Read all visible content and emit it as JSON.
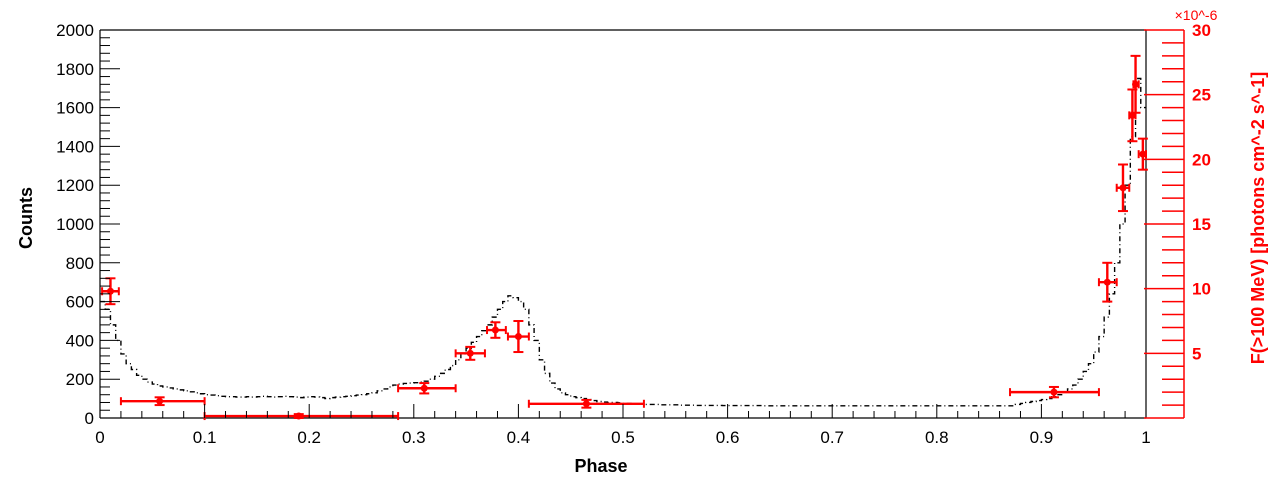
{
  "chart_data": {
    "type": "line",
    "xlabel": "Phase",
    "ylabel": "Counts",
    "ylabel_right": "F(>100 MeV) [photons cm^-2 s^-1]",
    "right_axis_multiplier": "×10^-6",
    "xlim": [
      0,
      1
    ],
    "ylim": [
      0,
      2000
    ],
    "ylim_right": [
      0,
      30
    ],
    "x_ticks": [
      "0",
      "0.1",
      "0.2",
      "0.3",
      "0.4",
      "0.5",
      "0.6",
      "0.7",
      "0.8",
      "0.9",
      "1"
    ],
    "y_ticks": [
      "0",
      "200",
      "400",
      "600",
      "800",
      "1000",
      "1200",
      "1400",
      "1600",
      "1800",
      "2000"
    ],
    "y_ticks_right": [
      "5",
      "10",
      "15",
      "20",
      "25",
      "30"
    ],
    "colors": {
      "histogram": "#000000",
      "flux": "#ff0000"
    },
    "grid": false,
    "series": [
      {
        "kind": "histogram",
        "axis": "left",
        "bin_width": 0.005,
        "bin_start": 0,
        "values": [
          600,
          560,
          480,
          400,
          330,
          280,
          250,
          220,
          200,
          185,
          175,
          165,
          160,
          155,
          150,
          145,
          140,
          135,
          130,
          125,
          120,
          118,
          115,
          112,
          110,
          110,
          108,
          108,
          110,
          108,
          110,
          112,
          110,
          108,
          110,
          112,
          110,
          108,
          105,
          108,
          110,
          108,
          105,
          100,
          105,
          108,
          110,
          112,
          115,
          118,
          120,
          125,
          130,
          140,
          150,
          160,
          170,
          175,
          178,
          180,
          182,
          185,
          190,
          200,
          215,
          230,
          250,
          270,
          300,
          330,
          360,
          390,
          420,
          450,
          480,
          520,
          560,
          600,
          630,
          620,
          600,
          560,
          480,
          400,
          300,
          230,
          180,
          150,
          130,
          120,
          110,
          105,
          100,
          95,
          90,
          85,
          82,
          80,
          80,
          78,
          75,
          75,
          72,
          72,
          70,
          70,
          70,
          68,
          68,
          68,
          68,
          66,
          66,
          66,
          65,
          65,
          65,
          65,
          65,
          64,
          64,
          64,
          64,
          64,
          64,
          64,
          64,
          63,
          63,
          63,
          63,
          63,
          63,
          63,
          63,
          63,
          63,
          63,
          63,
          63,
          63,
          63,
          63,
          63,
          63,
          63,
          63,
          63,
          63,
          63,
          63,
          63,
          63,
          63,
          63,
          63,
          63,
          63,
          63,
          63,
          63,
          63,
          63,
          63,
          63,
          63,
          63,
          63,
          63,
          63,
          63,
          63,
          63,
          63,
          63,
          70,
          75,
          80,
          85,
          90,
          95,
          100,
          110,
          120,
          135,
          150,
          170,
          200,
          240,
          280,
          340,
          420,
          520,
          640,
          800,
          1000,
          1200,
          1450,
          1750,
          1600
        ]
      },
      {
        "kind": "errorbars",
        "axis": "right",
        "points": [
          {
            "x": 0.01,
            "x_lo": 0.002,
            "x_hi": 0.018,
            "y": 9.8,
            "y_err": 1.0
          },
          {
            "x": 0.057,
            "x_lo": 0.02,
            "x_hi": 0.1,
            "y": 1.3,
            "y_err": 0.3
          },
          {
            "x": 0.19,
            "x_lo": 0.1,
            "x_hi": 0.285,
            "y": 0.15,
            "y_err": 0.15
          },
          {
            "x": 0.31,
            "x_lo": 0.285,
            "x_hi": 0.34,
            "y": 2.3,
            "y_err": 0.4
          },
          {
            "x": 0.354,
            "x_lo": 0.34,
            "x_hi": 0.368,
            "y": 5.0,
            "y_err": 0.5
          },
          {
            "x": 0.378,
            "x_lo": 0.37,
            "x_hi": 0.388,
            "y": 6.8,
            "y_err": 0.6
          },
          {
            "x": 0.4,
            "x_lo": 0.39,
            "x_hi": 0.41,
            "y": 6.3,
            "y_err": 1.2
          },
          {
            "x": 0.465,
            "x_lo": 0.41,
            "x_hi": 0.52,
            "y": 1.1,
            "y_err": 0.3
          },
          {
            "x": 0.912,
            "x_lo": 0.87,
            "x_hi": 0.955,
            "y": 2.0,
            "y_err": 0.4
          },
          {
            "x": 0.963,
            "x_lo": 0.955,
            "x_hi": 0.972,
            "y": 10.5,
            "y_err": 1.5
          },
          {
            "x": 0.978,
            "x_lo": 0.972,
            "x_hi": 0.984,
            "y": 17.8,
            "y_err": 1.8
          },
          {
            "x": 0.987,
            "x_lo": 0.984,
            "x_hi": 0.99,
            "y": 23.4,
            "y_err": 2.0
          },
          {
            "x": 0.99,
            "x_lo": 0.988,
            "x_hi": 0.993,
            "y": 25.8,
            "y_err": 2.2
          },
          {
            "x": 0.997,
            "x_lo": 0.993,
            "x_hi": 1.0,
            "y": 20.4,
            "y_err": 1.2
          }
        ]
      }
    ]
  }
}
